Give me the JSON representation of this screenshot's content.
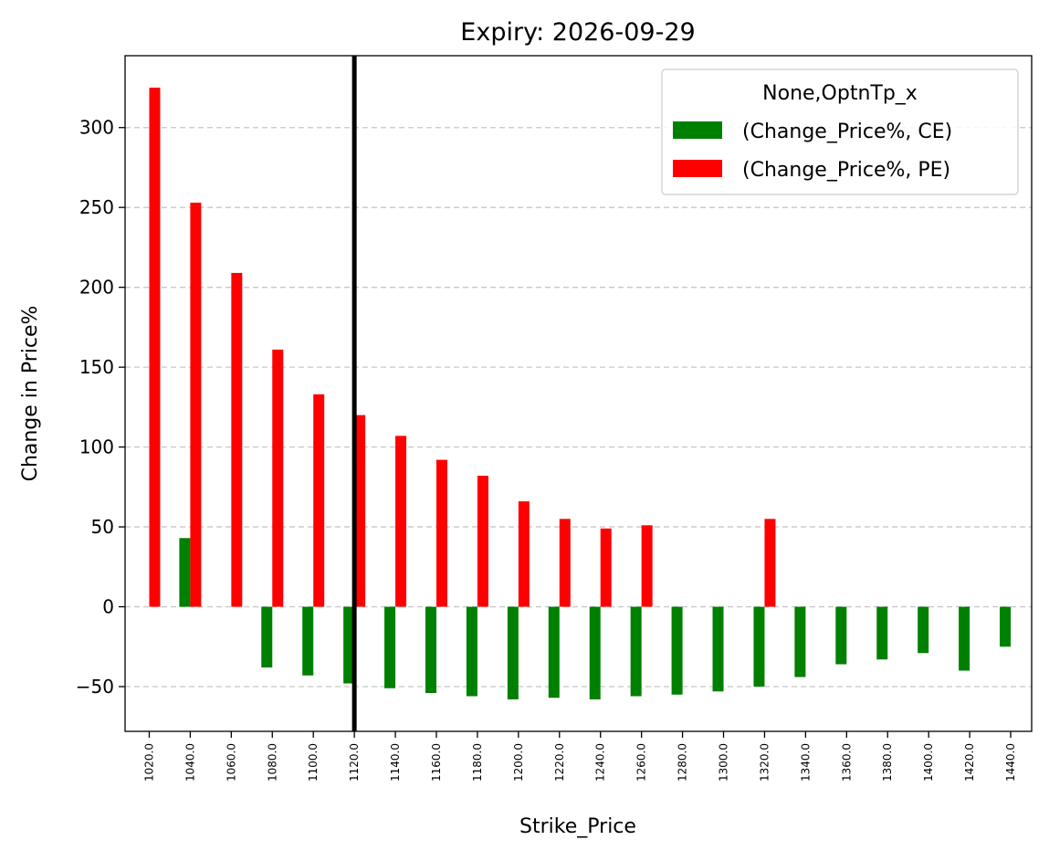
{
  "chart_data": {
    "type": "bar",
    "title": "Expiry: 2026-09-29",
    "xlabel": "Strike_Price",
    "ylabel": "Change in Price%",
    "categories": [
      "1020.0",
      "1040.0",
      "1060.0",
      "1080.0",
      "1100.0",
      "1120.0",
      "1140.0",
      "1160.0",
      "1180.0",
      "1200.0",
      "1220.0",
      "1240.0",
      "1260.0",
      "1280.0",
      "1300.0",
      "1320.0",
      "1340.0",
      "1360.0",
      "1380.0",
      "1400.0",
      "1420.0",
      "1440.0"
    ],
    "series": [
      {
        "name": "(Change_Price%, CE)",
        "color": "#008000",
        "values": [
          null,
          43,
          null,
          -38,
          -43,
          -48,
          -51,
          -54,
          -56,
          -58,
          -57,
          -58,
          -56,
          -55,
          -53,
          -50,
          -44,
          -36,
          -33,
          -29,
          -40,
          -25
        ]
      },
      {
        "name": "(Change_Price%, PE)",
        "color": "#ff0000",
        "values": [
          325,
          253,
          209,
          161,
          133,
          120,
          107,
          92,
          82,
          66,
          55,
          49,
          51,
          null,
          null,
          55,
          null,
          null,
          null,
          null,
          null,
          null
        ]
      }
    ],
    "legend": {
      "title": "None,OptnTp_x",
      "placement": "top-right"
    },
    "ylim": [
      -78,
      345
    ],
    "yticks": [
      -50,
      0,
      50,
      100,
      150,
      200,
      250,
      300
    ],
    "grid": {
      "y": true,
      "x": false,
      "style": "dashed"
    },
    "reference_line": {
      "x_category": "1120.0",
      "color": "#000000"
    }
  }
}
